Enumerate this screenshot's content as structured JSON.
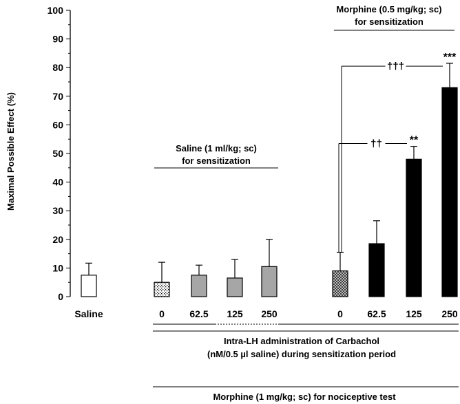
{
  "chart_data": {
    "type": "bar",
    "ylabel": "Maximal Possible Effect (%)",
    "ylim": [
      0,
      100
    ],
    "yticks": [
      0,
      10,
      20,
      30,
      40,
      50,
      60,
      70,
      80,
      90,
      100
    ],
    "grid": false,
    "categories": [
      "Saline",
      "0",
      "62.5",
      "125",
      "250",
      "0",
      "62.5",
      "125",
      "250"
    ],
    "groups": [
      {
        "label": "",
        "bars": [
          {
            "category": "Saline",
            "value": 7.5,
            "error": 4.2,
            "fill": "open"
          }
        ]
      },
      {
        "label_line1": "Saline (1 ml/kg; sc)",
        "label_line2": "for sensitization",
        "bars": [
          {
            "category": "0",
            "value": 5.0,
            "error": 7.0,
            "fill": "dotted"
          },
          {
            "category": "62.5",
            "value": 7.5,
            "error": 3.5,
            "fill": "gray"
          },
          {
            "category": "125",
            "value": 6.5,
            "error": 6.5,
            "fill": "gray"
          },
          {
            "category": "250",
            "value": 10.5,
            "error": 9.5,
            "fill": "gray"
          }
        ]
      },
      {
        "label_line1": "Morphine (0.5 mg/kg; sc)",
        "label_line2": "for sensitization",
        "bars": [
          {
            "category": "0",
            "value": 9.0,
            "error": 6.5,
            "fill": "crosshatch"
          },
          {
            "category": "62.5",
            "value": 18.5,
            "error": 8.0,
            "fill": "black"
          },
          {
            "category": "125",
            "value": 48.0,
            "error": 4.5,
            "fill": "black",
            "annotation": "**"
          },
          {
            "category": "250",
            "value": 73.0,
            "error": 8.5,
            "fill": "black",
            "annotation": "***"
          }
        ]
      }
    ],
    "comparisons": [
      {
        "from": "0",
        "to": "125",
        "label": "††",
        "group": "Morphine (0.5 mg/kg; sc)"
      },
      {
        "from": "0",
        "to": "250",
        "label": "†††",
        "group": "Morphine (0.5 mg/kg; sc)"
      }
    ],
    "footer_line1": "Intra-LH administration of Carbachol",
    "footer_line2": "(nM/0.5 µl saline) during sensitization period",
    "footer_bottom": "Morphine (1 mg/kg; sc) for nociceptive test"
  },
  "colors": {
    "black": "#000000",
    "gray": "#a6a6a6",
    "white": "#ffffff"
  }
}
